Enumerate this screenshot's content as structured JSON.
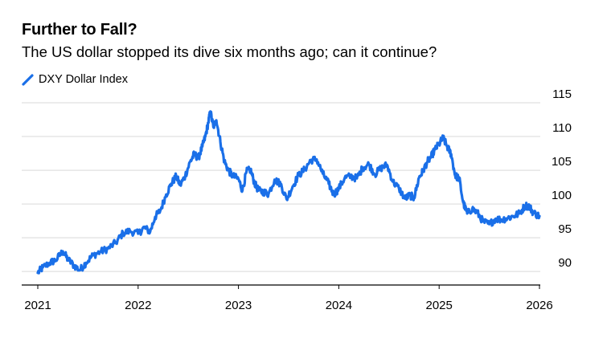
{
  "header": {
    "title": "Further to Fall?",
    "subtitle": "The US dollar stopped its dive six months ago; can it continue?"
  },
  "legend": {
    "label": "DXY Dollar Index"
  },
  "colors": {
    "series": "#1a6fe8",
    "grid": "#d9d9d9",
    "axis": "#000000"
  },
  "chart_data": {
    "type": "line",
    "title": "Further to Fall?",
    "subtitle": "The US dollar stopped its dive six months ago; can it continue?",
    "xlabel": "",
    "ylabel": "",
    "xlim": [
      2021.0,
      2026.0
    ],
    "ylim": [
      88,
      115
    ],
    "yticks": [
      90,
      95,
      100,
      105,
      110,
      115
    ],
    "xticks": [
      "2021",
      "2022",
      "2023",
      "2024",
      "2025",
      "2026"
    ],
    "legend_position": "top-left",
    "grid": true,
    "series": [
      {
        "name": "DXY Dollar Index",
        "x": [
          2021.0,
          2021.05,
          2021.12,
          2021.18,
          2021.25,
          2021.3,
          2021.36,
          2021.42,
          2021.48,
          2021.55,
          2021.62,
          2021.7,
          2021.78,
          2021.85,
          2021.92,
          2022.0,
          2022.06,
          2022.12,
          2022.17,
          2022.22,
          2022.28,
          2022.33,
          2022.38,
          2022.42,
          2022.47,
          2022.52,
          2022.56,
          2022.6,
          2022.64,
          2022.67,
          2022.7,
          2022.72,
          2022.75,
          2022.78,
          2022.82,
          2022.86,
          2022.9,
          2022.94,
          2023.0,
          2023.04,
          2023.08,
          2023.12,
          2023.16,
          2023.2,
          2023.25,
          2023.3,
          2023.36,
          2023.42,
          2023.48,
          2023.54,
          2023.6,
          2023.66,
          2023.72,
          2023.78,
          2023.84,
          2023.9,
          2023.95,
          2024.0,
          2024.06,
          2024.12,
          2024.18,
          2024.24,
          2024.3,
          2024.36,
          2024.42,
          2024.48,
          2024.54,
          2024.6,
          2024.66,
          2024.71,
          2024.75,
          2024.8,
          2024.84,
          2024.88,
          2024.92,
          2024.96,
          2025.0,
          2025.04,
          2025.08,
          2025.12,
          2025.16,
          2025.2,
          2025.24,
          2025.28,
          2025.33,
          2025.38,
          2025.44,
          2025.5,
          2025.56,
          2025.62,
          2025.68,
          2025.74,
          2025.8,
          2025.86,
          2025.9,
          2025.94,
          2026.0
        ],
        "values": [
          89.8,
          90.6,
          91.3,
          91.7,
          93.0,
          91.8,
          90.9,
          90.2,
          91.3,
          92.4,
          92.9,
          93.4,
          94.3,
          95.7,
          96.0,
          95.6,
          96.5,
          95.9,
          98.1,
          99.0,
          101.4,
          103.0,
          104.1,
          102.8,
          104.2,
          106.3,
          107.4,
          106.8,
          108.5,
          110.0,
          112.1,
          113.7,
          111.4,
          112.4,
          109.2,
          106.3,
          105.0,
          104.2,
          103.7,
          102.0,
          104.8,
          105.1,
          103.1,
          102.0,
          101.8,
          101.5,
          103.6,
          103.0,
          100.7,
          102.6,
          104.3,
          105.1,
          106.5,
          106.6,
          104.5,
          103.0,
          101.4,
          102.3,
          103.9,
          104.1,
          103.8,
          105.4,
          105.9,
          104.4,
          105.3,
          105.8,
          103.3,
          102.3,
          100.8,
          101.3,
          100.9,
          103.9,
          104.9,
          106.2,
          107.0,
          108.1,
          108.9,
          109.8,
          108.5,
          107.4,
          104.2,
          103.8,
          100.2,
          98.6,
          99.3,
          98.7,
          97.4,
          97.0,
          97.8,
          97.7,
          97.9,
          98.2,
          98.6,
          99.8,
          99.6,
          98.7,
          98.2
        ]
      }
    ]
  }
}
